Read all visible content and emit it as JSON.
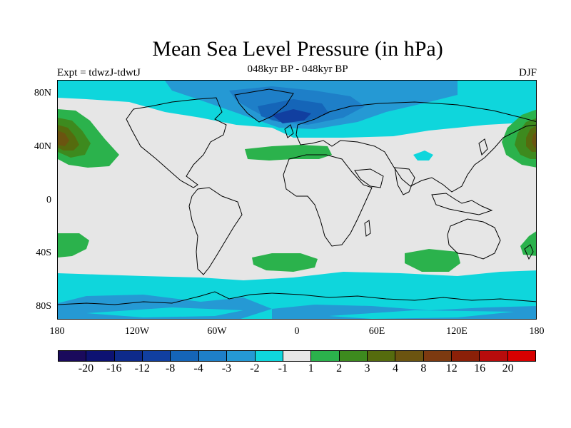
{
  "title": "Mean Sea Level Pressure (in hPa)",
  "subtitle": "048kyr BP - 048kyr BP",
  "left_label": "Expt = tdwzJ-tdwtJ",
  "right_label": "DJF",
  "y_ticks": [
    "80N",
    "40N",
    "0",
    "40S",
    "80S"
  ],
  "x_ticks": [
    "180",
    "120W",
    "60W",
    "0",
    "60E",
    "120E",
    "180"
  ],
  "colorbar": {
    "colors": [
      "#1a0a5c",
      "#0d1272",
      "#0e2a8a",
      "#113fa0",
      "#1565b8",
      "#1e7fc8",
      "#2599d4",
      "#0fd6dc",
      "#e6e6e6",
      "#2bb24c",
      "#3d8a1e",
      "#556b0e",
      "#6b5410",
      "#7d3a10",
      "#8b2008",
      "#b80c0c",
      "#d80000"
    ],
    "labels": [
      "-20",
      "-16",
      "-12",
      "-8",
      "-4",
      "-3",
      "-2",
      "-1",
      "1",
      "2",
      "3",
      "4",
      "8",
      "12",
      "16",
      "20"
    ]
  },
  "map_colors": {
    "background": "#e6e6e6",
    "level_m1": "#0fd6dc",
    "level_m2": "#2599d4",
    "level_m3": "#1e7fc8",
    "level_m4": "#1565b8",
    "level_m8": "#113fa0",
    "level_p1": "#2bb24c",
    "level_p2": "#3d8a1e",
    "level_p3": "#556b0e",
    "level_p4": "#6b5410",
    "coast": "#000000"
  }
}
